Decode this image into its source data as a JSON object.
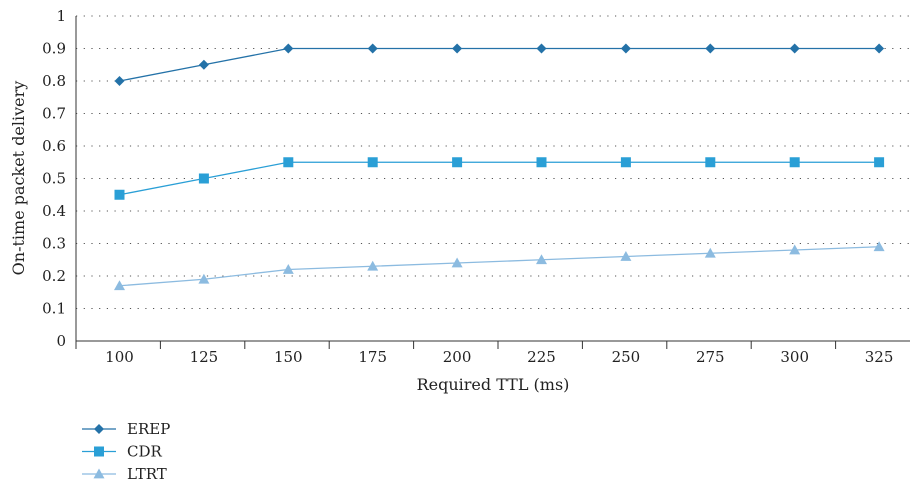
{
  "chart_data": {
    "type": "line",
    "title": "",
    "xlabel": "Required TTL (ms)",
    "ylabel": "On-time packet delivery",
    "x": [
      100,
      125,
      150,
      175,
      200,
      225,
      250,
      275,
      300,
      325
    ],
    "xticks": [
      "100",
      "125",
      "150",
      "175",
      "200",
      "225",
      "250",
      "275",
      "300",
      "325"
    ],
    "ylim": [
      0,
      1
    ],
    "yticks": [
      "0",
      "0.1",
      "0.2",
      "0.3",
      "0.4",
      "0.5",
      "0.6",
      "0.7",
      "0.8",
      "0.9",
      "1"
    ],
    "grid": "horizontal dotted",
    "legend_position": "bottom-left",
    "series": [
      {
        "name": "EREP",
        "marker": "diamond",
        "color": "#2472a8",
        "values": [
          0.8,
          0.85,
          0.9,
          0.9,
          0.9,
          0.9,
          0.9,
          0.9,
          0.9,
          0.9
        ]
      },
      {
        "name": "CDR",
        "marker": "square",
        "color": "#2a9fd6",
        "values": [
          0.45,
          0.5,
          0.55,
          0.55,
          0.55,
          0.55,
          0.55,
          0.55,
          0.55,
          0.55
        ]
      },
      {
        "name": "LTRT",
        "marker": "triangle",
        "color": "#8cbbe0",
        "values": [
          0.17,
          0.19,
          0.22,
          0.23,
          0.24,
          0.25,
          0.26,
          0.27,
          0.28,
          0.29
        ]
      }
    ]
  }
}
